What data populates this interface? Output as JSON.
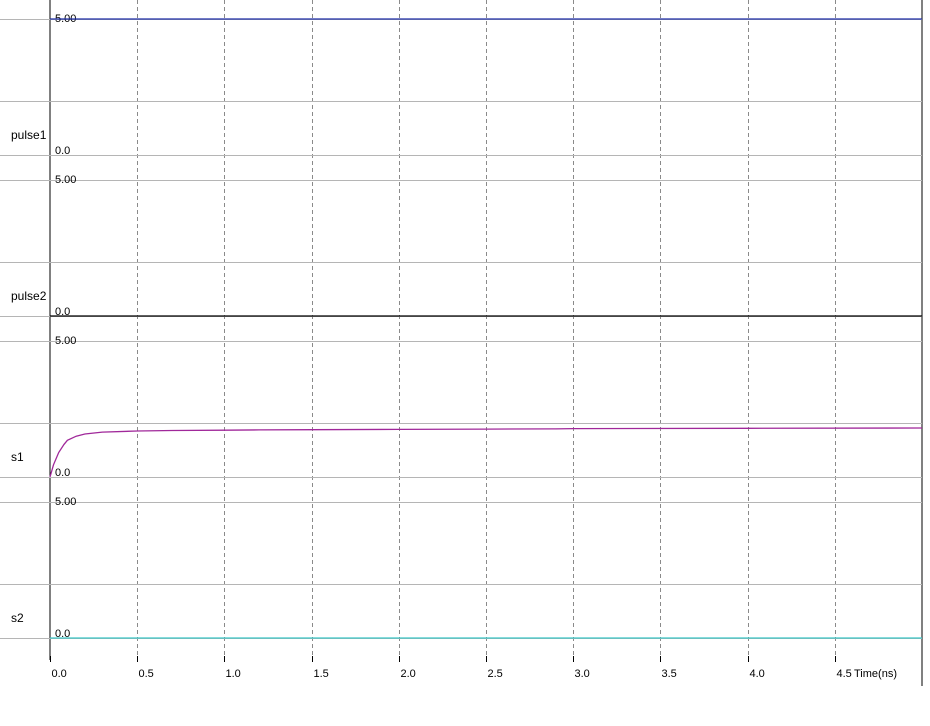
{
  "chart_data": {
    "type": "line",
    "xlabel": "Time(ns)",
    "xlim": [
      0,
      5
    ],
    "x_ticks": [
      "0.0",
      "0.5",
      "1.0",
      "1.5",
      "2.0",
      "2.5",
      "3.0",
      "3.5",
      "4.0",
      "4.5"
    ],
    "grid": true,
    "panels": [
      {
        "name": "pulse1",
        "color": "#1f2fa8",
        "y_top_label": "5.00",
        "y_bottom_label": "0.0",
        "ylim": [
          0,
          5
        ],
        "x": [
          0,
          5
        ],
        "y": [
          5.0,
          5.0
        ]
      },
      {
        "name": "pulse2",
        "color": "#000000",
        "y_top_label": "5.00",
        "y_bottom_label": "0.0",
        "ylim": [
          0,
          5
        ],
        "x": [
          0,
          5
        ],
        "y": [
          0.0,
          0.0
        ]
      },
      {
        "name": "s1",
        "color": "#a0289a",
        "y_top_label": "5.00",
        "y_bottom_label": "0.0",
        "ylim": [
          0,
          5
        ],
        "x": [
          0,
          0.02,
          0.05,
          0.08,
          0.1,
          0.15,
          0.2,
          0.3,
          0.5,
          0.7,
          1.0,
          1.2,
          1.5,
          2.0,
          2.5,
          2.9,
          3.0,
          4.0,
          5.0
        ],
        "y": [
          0.0,
          0.45,
          0.9,
          1.2,
          1.35,
          1.5,
          1.58,
          1.65,
          1.69,
          1.71,
          1.72,
          1.73,
          1.74,
          1.75,
          1.76,
          1.77,
          1.78,
          1.79,
          1.8
        ]
      },
      {
        "name": "s2",
        "color": "#3cc8c8",
        "y_top_label": "5.00",
        "y_bottom_label": "0.0",
        "ylim": [
          0,
          5
        ],
        "x": [
          0,
          5
        ],
        "y": [
          0.0,
          0.0
        ]
      }
    ]
  }
}
